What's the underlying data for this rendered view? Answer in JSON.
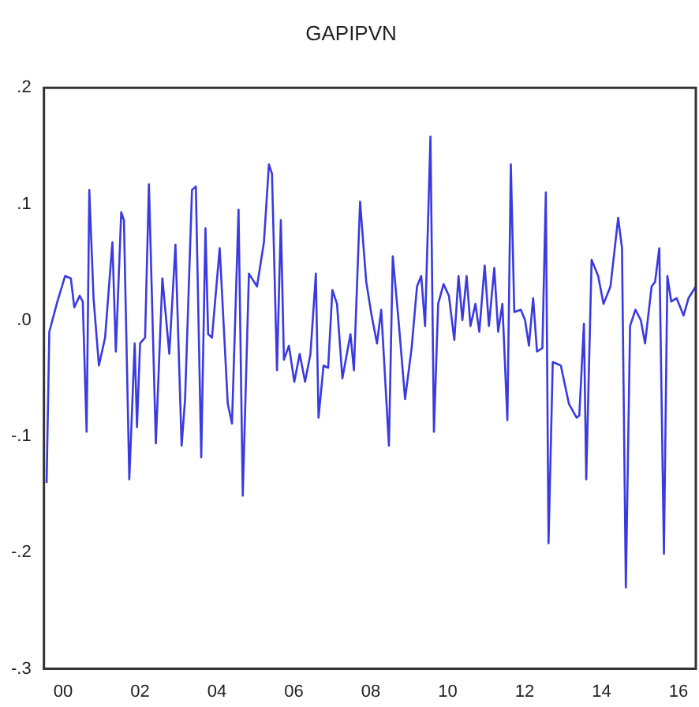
{
  "chart_data": {
    "type": "line",
    "title": "GAPIPVN",
    "marker": "none",
    "line_style": "solid",
    "grid": false,
    "legend": false,
    "x": [
      1999.57,
      1999.64,
      1999.85,
      2000.05,
      2000.2,
      2000.29,
      2000.43,
      2000.51,
      2000.61,
      2000.68,
      2000.79,
      2000.93,
      2001.09,
      2001.28,
      2001.37,
      2001.51,
      2001.58,
      2001.72,
      2001.86,
      2001.92,
      2002.0,
      2002.13,
      2002.23,
      2002.41,
      2002.58,
      2002.76,
      2002.92,
      2003.08,
      2003.17,
      2003.35,
      2003.45,
      2003.59,
      2003.7,
      2003.77,
      2003.87,
      2004.07,
      2004.28,
      2004.39,
      2004.56,
      2004.67,
      2004.83,
      2005.04,
      2005.22,
      2005.35,
      2005.43,
      2005.56,
      2005.66,
      2005.74,
      2005.87,
      2006.01,
      2006.15,
      2006.29,
      2006.43,
      2006.57,
      2006.64,
      2006.77,
      2006.89,
      2007.0,
      2007.12,
      2007.26,
      2007.47,
      2007.56,
      2007.72,
      2007.88,
      2008.02,
      2008.16,
      2008.27,
      2008.47,
      2008.57,
      2008.72,
      2008.89,
      2009.06,
      2009.2,
      2009.31,
      2009.41,
      2009.55,
      2009.64,
      2009.75,
      2009.89,
      2010.03,
      2010.17,
      2010.28,
      2010.38,
      2010.49,
      2010.59,
      2010.72,
      2010.82,
      2010.96,
      2011.07,
      2011.21,
      2011.31,
      2011.42,
      2011.55,
      2011.64,
      2011.73,
      2011.9,
      2012.01,
      2012.11,
      2012.22,
      2012.32,
      2012.46,
      2012.55,
      2012.62,
      2012.73,
      2012.94,
      2013.15,
      2013.35,
      2013.42,
      2013.54,
      2013.6,
      2013.74,
      2013.91,
      2014.05,
      2014.23,
      2014.43,
      2014.53,
      2014.63,
      2014.74,
      2014.88,
      2015.02,
      2015.13,
      2015.3,
      2015.39,
      2015.5,
      2015.62,
      2015.71,
      2015.81,
      2015.95,
      2016.13,
      2016.26,
      2016.45
    ],
    "series": [
      {
        "color": "#3a3ae0",
        "values": [
          -0.14,
          -0.01,
          0.016,
          0.038,
          0.036,
          0.011,
          0.021,
          0.016,
          -0.096,
          0.112,
          0.019,
          -0.039,
          -0.015,
          0.067,
          -0.027,
          0.093,
          0.086,
          -0.137,
          -0.02,
          -0.092,
          -0.02,
          -0.015,
          0.117,
          -0.106,
          0.036,
          -0.029,
          0.065,
          -0.108,
          -0.068,
          0.112,
          0.115,
          -0.118,
          0.079,
          -0.012,
          -0.015,
          0.062,
          -0.072,
          -0.089,
          0.095,
          -0.151,
          0.04,
          0.029,
          0.067,
          0.134,
          0.126,
          -0.043,
          0.086,
          -0.034,
          -0.022,
          -0.053,
          -0.029,
          -0.053,
          -0.029,
          0.04,
          -0.084,
          -0.039,
          -0.041,
          0.026,
          0.014,
          -0.05,
          -0.012,
          -0.043,
          0.102,
          0.033,
          0.004,
          -0.02,
          0.009,
          -0.108,
          0.055,
          0.0,
          -0.068,
          -0.024,
          0.029,
          0.038,
          -0.005,
          0.158,
          -0.096,
          0.014,
          0.031,
          0.021,
          -0.017,
          0.038,
          0.0,
          0.038,
          -0.005,
          0.014,
          -0.01,
          0.047,
          -0.005,
          0.045,
          -0.01,
          0.014,
          -0.086,
          0.134,
          0.007,
          0.009,
          0.0,
          -0.022,
          0.019,
          -0.027,
          -0.024,
          0.11,
          -0.192,
          -0.036,
          -0.039,
          -0.072,
          -0.084,
          -0.082,
          -0.003,
          -0.137,
          0.052,
          0.038,
          0.014,
          0.029,
          0.088,
          0.062,
          -0.23,
          -0.005,
          0.009,
          0.0,
          -0.02,
          0.029,
          0.033,
          0.062,
          -0.201,
          0.038,
          0.016,
          0.019,
          0.004,
          0.019,
          0.029
        ]
      }
    ],
    "xlim": [
      1999.5,
      2016.45
    ],
    "xticks": [
      {
        "value": 2000,
        "label": "00"
      },
      {
        "value": 2002,
        "label": "02"
      },
      {
        "value": 2004,
        "label": "04"
      },
      {
        "value": 2006,
        "label": "06"
      },
      {
        "value": 2008,
        "label": "08"
      },
      {
        "value": 2010,
        "label": "10"
      },
      {
        "value": 2012,
        "label": "12"
      },
      {
        "value": 2014,
        "label": "14"
      },
      {
        "value": 2016,
        "label": "16"
      }
    ],
    "ylim": [
      -0.3,
      0.2
    ],
    "yticks": [
      {
        "value": 0.2,
        "label": ".2"
      },
      {
        "value": 0.1,
        "label": ".1"
      },
      {
        "value": 0,
        "label": ".0"
      },
      {
        "value": -0.1,
        "label": "-.1"
      },
      {
        "value": -0.2,
        "label": "-.2"
      },
      {
        "value": -0.3,
        "label": "-.3"
      }
    ]
  }
}
